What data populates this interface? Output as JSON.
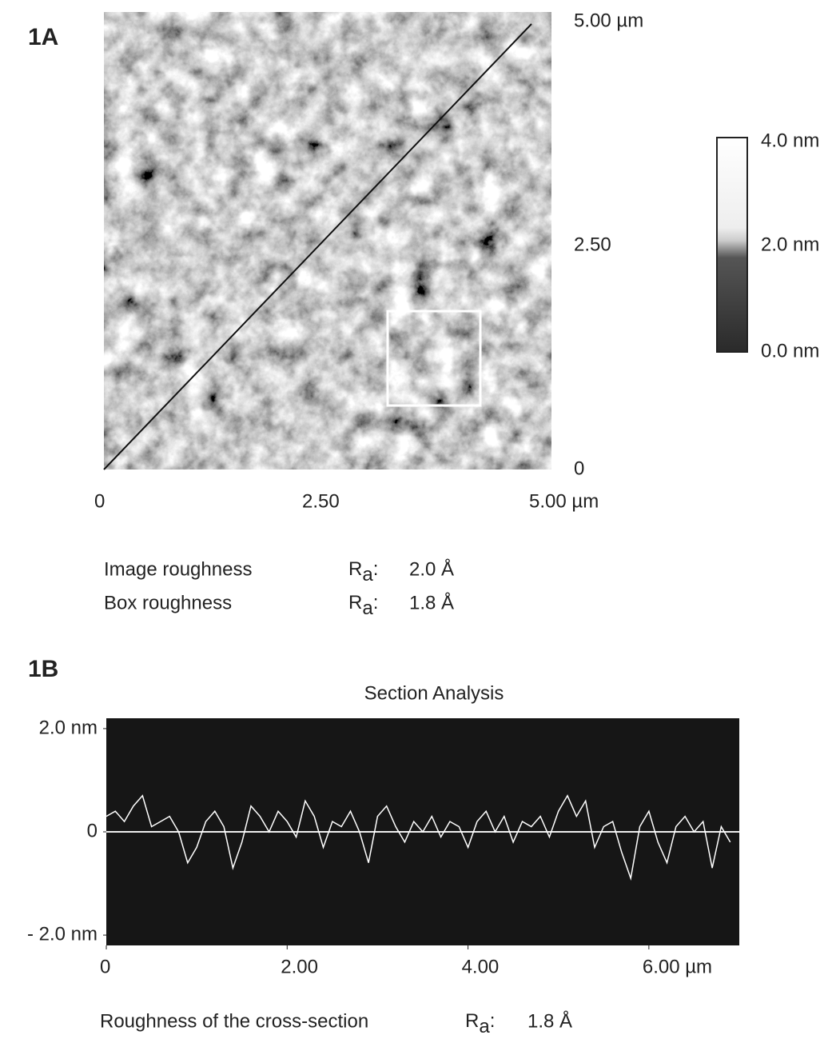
{
  "panel_a": {
    "label": "1A",
    "x_axis": [
      "0",
      "2.50",
      "5.00 µm"
    ],
    "y_axis": [
      "5.00 µm",
      "2.50",
      "0"
    ],
    "colorbar": [
      "4.0 nm",
      "2.0 nm",
      "0.0 nm"
    ],
    "roughness": [
      {
        "name": "Image roughness",
        "symbol": "R",
        "sub": "a",
        "sep": ":",
        "value": "2.0 Å"
      },
      {
        "name": "Box roughness",
        "symbol": "R",
        "sub": "a",
        "sep": ":",
        "value": "1.8 Å"
      }
    ]
  },
  "panel_b": {
    "label": "1B",
    "roughness": {
      "name": "Roughness of the cross-section",
      "symbol": "R",
      "sub": "a",
      "sep": ":",
      "value": "1.8 Å"
    }
  },
  "chart_data": {
    "type": "line",
    "title": "Section Analysis",
    "x": [
      0.0,
      0.1,
      0.2,
      0.3,
      0.4,
      0.5,
      0.6,
      0.7,
      0.8,
      0.9,
      1.0,
      1.1,
      1.2,
      1.3,
      1.4,
      1.5,
      1.6,
      1.7,
      1.8,
      1.9,
      2.0,
      2.1,
      2.2,
      2.3,
      2.4,
      2.5,
      2.6,
      2.7,
      2.8,
      2.9,
      3.0,
      3.1,
      3.2,
      3.3,
      3.4,
      3.5,
      3.6,
      3.7,
      3.8,
      3.9,
      4.0,
      4.1,
      4.2,
      4.3,
      4.4,
      4.5,
      4.6,
      4.7,
      4.8,
      4.9,
      5.0,
      5.1,
      5.2,
      5.3,
      5.4,
      5.5,
      5.6,
      5.7,
      5.8,
      5.9,
      6.0,
      6.1,
      6.2,
      6.3,
      6.4,
      6.5,
      6.6,
      6.7,
      6.8,
      6.9
    ],
    "series": [
      {
        "color": "#ffffff",
        "values": [
          0.3,
          0.4,
          0.2,
          0.5,
          0.7,
          0.1,
          0.2,
          0.3,
          0.0,
          -0.6,
          -0.3,
          0.2,
          0.4,
          0.1,
          -0.7,
          -0.2,
          0.5,
          0.3,
          0.0,
          0.4,
          0.2,
          -0.1,
          0.6,
          0.3,
          -0.3,
          0.2,
          0.1,
          0.4,
          0.0,
          -0.6,
          0.3,
          0.5,
          0.1,
          -0.2,
          0.2,
          0.0,
          0.3,
          -0.1,
          0.2,
          0.1,
          -0.3,
          0.2,
          0.4,
          0.0,
          0.3,
          -0.2,
          0.2,
          0.1,
          0.3,
          -0.1,
          0.4,
          0.7,
          0.3,
          0.6,
          -0.3,
          0.1,
          0.2,
          -0.4,
          -0.9,
          0.1,
          0.4,
          -0.2,
          -0.6,
          0.1,
          0.3,
          0.0,
          0.2,
          -0.7,
          0.1,
          -0.2
        ]
      }
    ],
    "xlim": [
      0,
      7
    ],
    "xticks": [
      0,
      {
        "value": 2,
        "label": "2.00"
      },
      {
        "value": 4,
        "label": "4.00"
      },
      {
        "value": 6,
        "label": "6.00 µm"
      }
    ],
    "ylim": [
      -2.2,
      2.2
    ],
    "yticks": [
      {
        "value": 2,
        "label": "2.0 nm"
      },
      0,
      {
        "value": -2,
        "label": "- 2.0 nm"
      }
    ]
  }
}
